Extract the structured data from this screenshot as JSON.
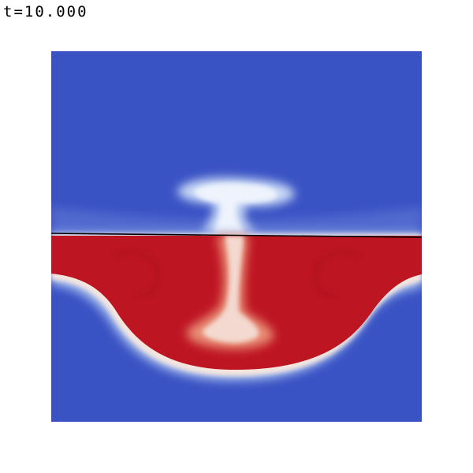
{
  "time_label": "t=10.000",
  "colors": {
    "background": "#ffffff",
    "cold": "#3a53c4",
    "hot": "#be1522",
    "interface_line": "#000000"
  }
}
